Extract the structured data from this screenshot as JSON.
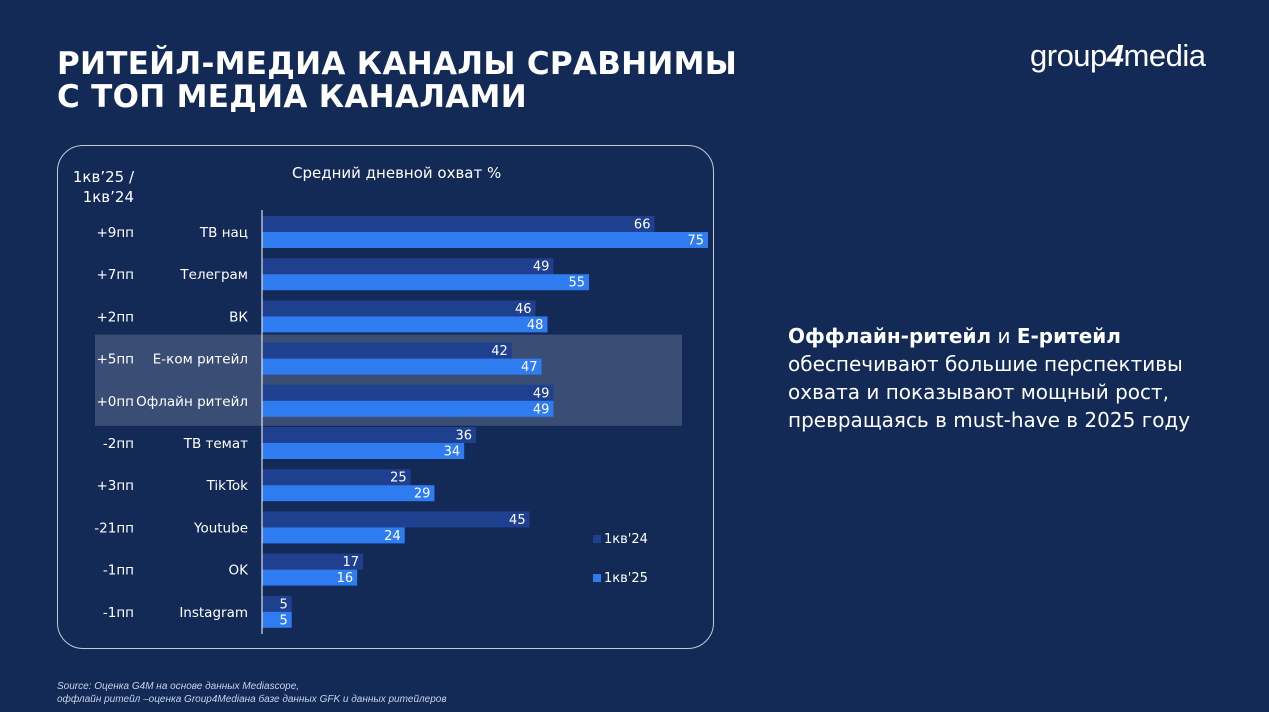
{
  "slide": {
    "title_line1": "РИТЕЙЛ-МЕДИА КАНАЛЫ СРАВНИМЫ",
    "title_line2": "С ТОП МЕДИА КАНАЛАМИ",
    "logo_part1": "group",
    "logo_part2": "4",
    "logo_part3": "media",
    "side_bold1": "Оффлайн-ритейл",
    "side_and": " и ",
    "side_bold2": "E-ритейл",
    "side_rest": " обеспечивают большие перспективы охвата и показывают мощный рост, превращаясь в must-have в 2025 году",
    "source_line1": "Source: Оценка G4M на основе данных Mediascope,",
    "source_line2": "оффлайн ритейл –оценка Group4Mediaна базе данных GFK и данных ритейлеров",
    "corner_line1": "1кв’25  /",
    "corner_line2": "1кв’24"
  },
  "chart_data": {
    "type": "bar",
    "orientation": "horizontal",
    "title": "Средний дневной охват %",
    "categories": [
      "ТВ нац",
      "Телеграм",
      "ВК",
      "Е-ком ритейл",
      "Офлайн ритейл",
      "ТВ темат",
      "TikTok",
      "Youtube",
      "OK",
      "Instagram"
    ],
    "change_labels": [
      "+9пп",
      "+7пп",
      "+2пп",
      "+5пп",
      "+0пп",
      "-2пп",
      "+3пп",
      "-21пп",
      "-1пп",
      "-1пп"
    ],
    "highlighted": [
      "Е-ком ритейл",
      "Офлайн ритейл"
    ],
    "series": [
      {
        "name": "1кв'24",
        "color": "#1f3f8f",
        "values": [
          66,
          49,
          46,
          42,
          49,
          36,
          25,
          45,
          17,
          5
        ]
      },
      {
        "name": "1кв'25",
        "color": "#2f7bf0",
        "values": [
          75,
          55,
          48,
          47,
          49,
          34,
          29,
          24,
          16,
          5
        ]
      }
    ],
    "xlim": [
      0,
      75
    ],
    "grid": false,
    "legend_position": "bottom-right"
  }
}
